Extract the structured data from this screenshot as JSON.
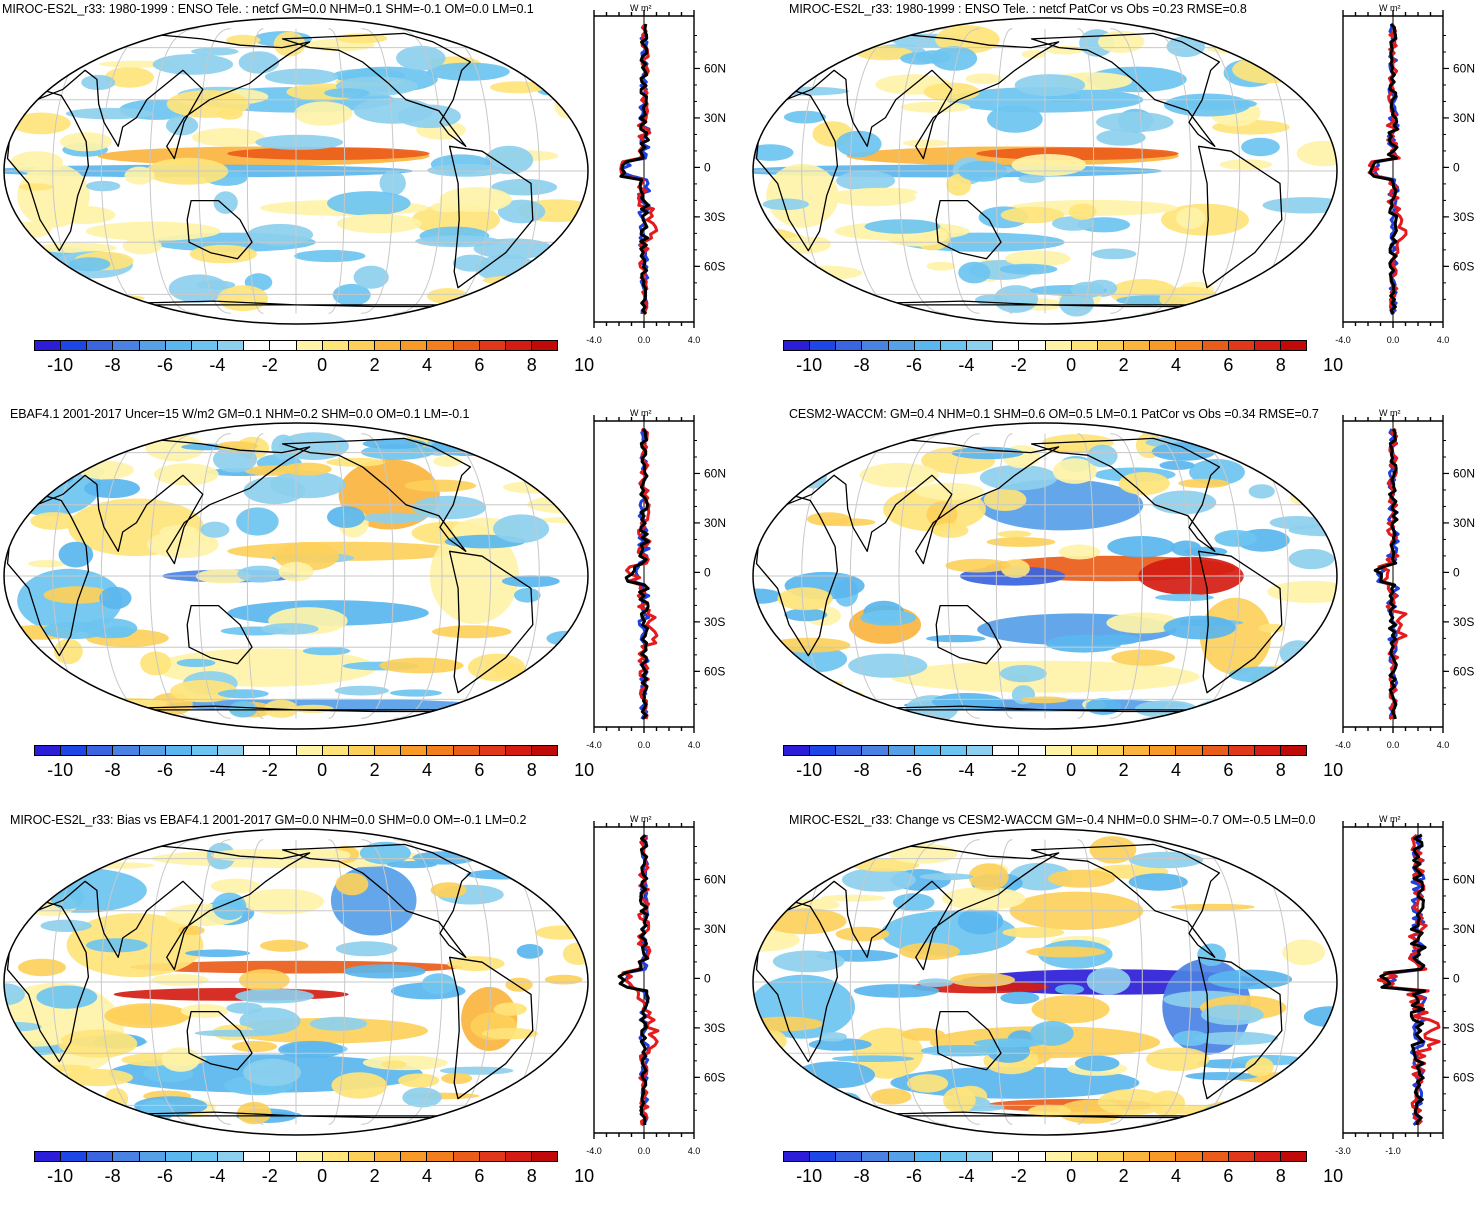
{
  "panels": [
    {
      "id": "p1",
      "title": "MIROC-ES2L_r33: 1980-1999 : ENSO Tele. : netcf GM=0.0 NHM=0.1 SHM=-0.1 OM=0.0 LM=0.1",
      "profile_xlim": [
        -4.0,
        4.0
      ],
      "profile_ticks": [
        "-4.0",
        "0.0",
        "4.0"
      ],
      "pattern": "model"
    },
    {
      "id": "p2",
      "title": "MIROC-ES2L_r33: 1980-1999 : ENSO Tele. : netcf PatCor vs Obs =0.23 RMSE=0.8",
      "profile_xlim": [
        -4.0,
        4.0
      ],
      "profile_ticks": [
        "-4.0",
        "0.0",
        "4.0"
      ],
      "pattern": "model"
    },
    {
      "id": "p3",
      "title": "EBAF4.1 2001-2017 Uncer=15 W/m2 GM=0.1 NHM=0.2 SHM=0.0 OM=0.1 LM=-0.1",
      "profile_xlim": [
        -4.0,
        4.0
      ],
      "profile_ticks": [
        "-4.0",
        "0.0",
        "4.0"
      ],
      "pattern": "obs"
    },
    {
      "id": "p4",
      "title": "CESM2-WACCM: GM=0.4 NHM=0.1 SHM=0.6 OM=0.5 LM=0.1 PatCor vs Obs =0.34 RMSE=0.7",
      "profile_xlim": [
        -4.0,
        4.0
      ],
      "profile_ticks": [
        "-4.0",
        "0.0",
        "4.0"
      ],
      "pattern": "cesm"
    },
    {
      "id": "p5",
      "title": "MIROC-ES2L_r33: Bias vs EBAF4.1 2001-2017 GM=0.0 NHM=0.0 SHM=0.0 OM=-0.1 LM=0.2",
      "profile_xlim": [
        -4.0,
        4.0
      ],
      "profile_ticks": [
        "-4.0",
        "0.0",
        "4.0"
      ],
      "pattern": "bias"
    },
    {
      "id": "p6",
      "title": "MIROC-ES2L_r33: Change vs CESM2-WACCM GM=-0.4 NHM=0.0 SHM=-0.7 OM=-0.5 LM=0.0",
      "profile_xlim": [
        -3.0,
        1.0
      ],
      "profile_ticks": [
        "-3.0",
        "-1.0"
      ],
      "pattern": "change"
    }
  ],
  "profile_units": "W m²",
  "lat_ticks": [
    "60N",
    "30N",
    "0",
    "30S",
    "60S"
  ],
  "colorbar": {
    "labels": [
      "-10",
      "-8",
      "-6",
      "-4",
      "-2",
      "0",
      "2",
      "4",
      "6",
      "8",
      "10"
    ],
    "colors": [
      "#2c1ed8",
      "#1e46e6",
      "#3a64e0",
      "#4a82e4",
      "#56a0e8",
      "#5ab6ee",
      "#6cc4f0",
      "#8ccfee",
      "#ffffff",
      "#ffffff",
      "#fff3a8",
      "#ffe47a",
      "#fdd05a",
      "#fbb43e",
      "#f89a28",
      "#f27e1e",
      "#ea5c1a",
      "#e03818",
      "#d41c14",
      "#c00a0a"
    ]
  },
  "legend_lines": {
    "obs": "#e41a1c",
    "model": "#1f3fe0",
    "total": "#000000"
  },
  "colors": {
    "land": "#ffffff",
    "coast": "#000000",
    "grid": "#c8c8c8"
  }
}
